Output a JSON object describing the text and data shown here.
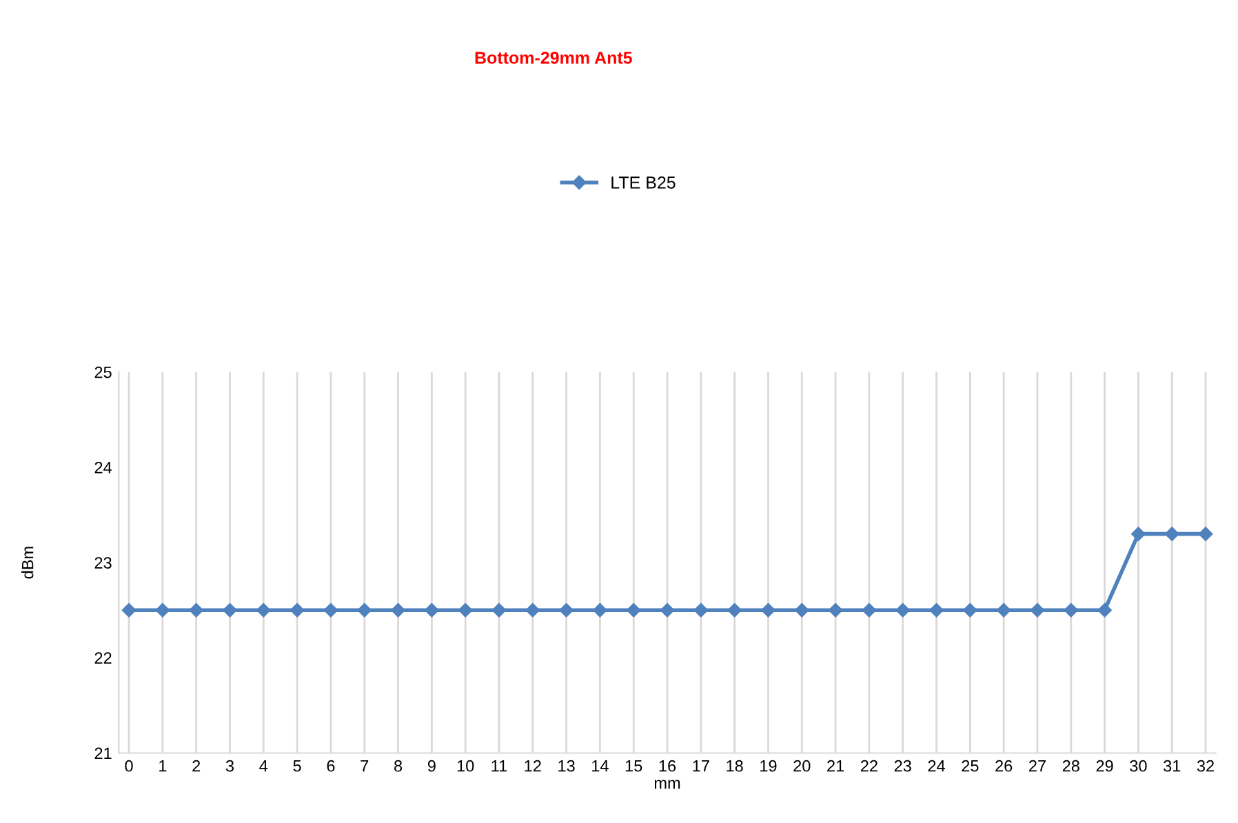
{
  "chart_data": {
    "type": "line",
    "title": "Bottom-29mm Ant5",
    "xlabel": "mm",
    "ylabel": "dBm",
    "categories": [
      "0",
      "1",
      "2",
      "3",
      "4",
      "5",
      "6",
      "7",
      "8",
      "9",
      "10",
      "11",
      "12",
      "13",
      "14",
      "15",
      "16",
      "17",
      "18",
      "19",
      "20",
      "21",
      "22",
      "23",
      "24",
      "25",
      "26",
      "27",
      "28",
      "29",
      "30",
      "31",
      "32"
    ],
    "series": [
      {
        "name": "LTE B25",
        "color": "#4f81bd",
        "values": [
          22.5,
          22.5,
          22.5,
          22.5,
          22.5,
          22.5,
          22.5,
          22.5,
          22.5,
          22.5,
          22.5,
          22.5,
          22.5,
          22.5,
          22.5,
          22.5,
          22.5,
          22.5,
          22.5,
          22.5,
          22.5,
          22.5,
          22.5,
          22.5,
          22.5,
          22.5,
          22.5,
          22.5,
          22.5,
          22.5,
          23.3,
          23.3,
          23.3
        ]
      }
    ],
    "ylim": [
      21,
      25
    ],
    "yticks": [
      21,
      22,
      23,
      24,
      25
    ],
    "grid": "x",
    "legend": "top",
    "marker": "diamond",
    "line_style": "solid"
  }
}
